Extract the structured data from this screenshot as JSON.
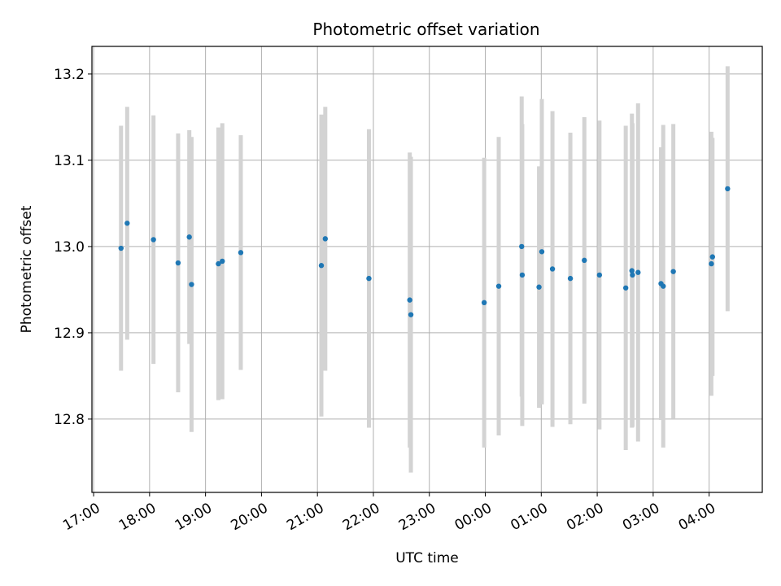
{
  "chart_data": {
    "type": "scatter",
    "title": "Photometric offset variation",
    "xlabel": "UTC time",
    "ylabel": "Photometric offset",
    "grid": true,
    "xlim_hours": [
      16.97,
      28.95
    ],
    "ylim": [
      12.715,
      13.232
    ],
    "x_ticks": [
      {
        "hour": 17,
        "label": "17:00"
      },
      {
        "hour": 18,
        "label": "18:00"
      },
      {
        "hour": 19,
        "label": "19:00"
      },
      {
        "hour": 20,
        "label": "20:00"
      },
      {
        "hour": 21,
        "label": "21:00"
      },
      {
        "hour": 22,
        "label": "22:00"
      },
      {
        "hour": 23,
        "label": "23:00"
      },
      {
        "hour": 24,
        "label": "00:00"
      },
      {
        "hour": 25,
        "label": "01:00"
      },
      {
        "hour": 26,
        "label": "02:00"
      },
      {
        "hour": 27,
        "label": "03:00"
      },
      {
        "hour": 28,
        "label": "04:00"
      }
    ],
    "y_ticks": [
      {
        "value": 12.8,
        "label": "12.8"
      },
      {
        "value": 12.9,
        "label": "12.9"
      },
      {
        "value": 13.0,
        "label": "13.0"
      },
      {
        "value": 13.1,
        "label": "13.1"
      },
      {
        "value": 13.2,
        "label": "13.2"
      }
    ],
    "x_hours": [
      17.49,
      17.6,
      18.07,
      18.51,
      18.71,
      18.75,
      19.23,
      19.3,
      19.63,
      21.07,
      21.14,
      21.92,
      22.65,
      22.67,
      23.98,
      24.24,
      24.65,
      24.66,
      24.96,
      25.01,
      25.2,
      25.52,
      25.77,
      26.04,
      26.51,
      26.62,
      26.63,
      26.73,
      27.14,
      27.18,
      27.36,
      28.04,
      28.06,
      28.33
    ],
    "values": [
      12.998,
      13.027,
      13.008,
      12.981,
      13.011,
      12.956,
      12.98,
      12.983,
      12.993,
      12.978,
      13.009,
      12.963,
      12.938,
      12.921,
      12.935,
      12.954,
      13.0,
      12.967,
      12.953,
      12.994,
      12.974,
      12.963,
      12.984,
      12.967,
      12.952,
      12.972,
      12.967,
      12.97,
      12.957,
      12.954,
      12.971,
      12.98,
      12.988,
      13.067
    ],
    "errors": [
      0.142,
      0.135,
      0.144,
      0.15,
      0.124,
      0.171,
      0.158,
      0.16,
      0.136,
      0.175,
      0.153,
      0.173,
      0.171,
      0.183,
      0.168,
      0.173,
      0.174,
      0.175,
      0.14,
      0.177,
      0.183,
      0.169,
      0.166,
      0.179,
      0.188,
      0.182,
      0.176,
      0.196,
      0.158,
      0.187,
      0.171,
      0.153,
      0.138,
      0.142
    ],
    "marker_color": "#1f77b4",
    "errorbar_color": "#d3d3d3"
  }
}
